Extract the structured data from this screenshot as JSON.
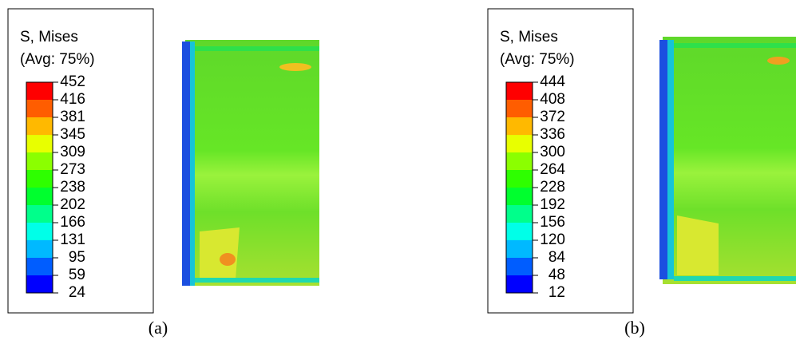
{
  "panels": [
    {
      "label": "(a)",
      "legend": {
        "title": "S, Mises",
        "subtitle": "(Avg: 75%)",
        "ticks": [
          452,
          416,
          381,
          345,
          309,
          273,
          238,
          202,
          166,
          131,
          95,
          59,
          24
        ]
      }
    },
    {
      "label": "(b)",
      "legend": {
        "title": "S, Mises",
        "subtitle": "(Avg: 75%)",
        "ticks": [
          444,
          408,
          372,
          336,
          300,
          264,
          228,
          192,
          156,
          120,
          84,
          48,
          12
        ]
      }
    }
  ]
}
